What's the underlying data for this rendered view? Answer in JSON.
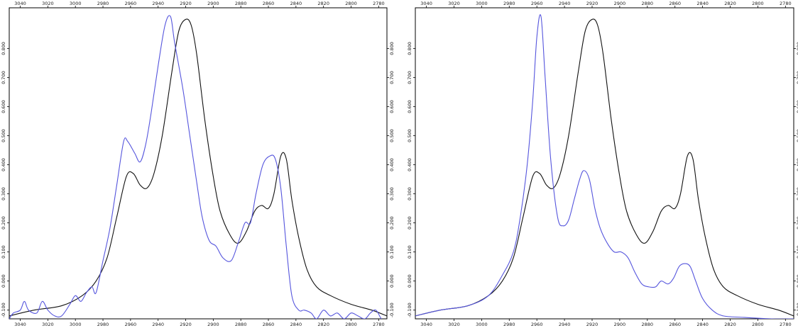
{
  "chart_data": [
    {
      "type": "line",
      "panel": "left",
      "title": "",
      "xlabel": "",
      "ylabel": "",
      "xlim": [
        3048,
        2774
      ],
      "ylim": [
        -0.13,
        0.94
      ],
      "x_ticks": [
        "3040",
        "3020",
        "3000",
        "2980",
        "2960",
        "2940",
        "2920",
        "2900",
        "2880",
        "2860",
        "2840",
        "2820",
        "2800",
        "2780"
      ],
      "y_ticks": [
        "-0.100",
        "0.000",
        "0.100",
        "0.200",
        "0.300",
        "0.400",
        "0.500",
        "0.600",
        "0.700",
        "0.800"
      ],
      "grid": false,
      "legend": "none",
      "series": [
        {
          "color": "#111111",
          "points": [
            [
              3048,
              -0.12
            ],
            [
              3030,
              -0.1
            ],
            [
              3010,
              -0.085
            ],
            [
              2995,
              -0.05
            ],
            [
              2985,
              0.0
            ],
            [
              2977,
              0.08
            ],
            [
              2970,
              0.22
            ],
            [
              2963,
              0.36
            ],
            [
              2958,
              0.37
            ],
            [
              2953,
              0.33
            ],
            [
              2948,
              0.32
            ],
            [
              2943,
              0.37
            ],
            [
              2937,
              0.5
            ],
            [
              2930,
              0.72
            ],
            [
              2925,
              0.86
            ],
            [
              2920,
              0.9
            ],
            [
              2916,
              0.88
            ],
            [
              2912,
              0.78
            ],
            [
              2906,
              0.55
            ],
            [
              2900,
              0.36
            ],
            [
              2895,
              0.24
            ],
            [
              2888,
              0.16
            ],
            [
              2882,
              0.13
            ],
            [
              2876,
              0.17
            ],
            [
              2870,
              0.24
            ],
            [
              2865,
              0.26
            ],
            [
              2860,
              0.25
            ],
            [
              2856,
              0.3
            ],
            [
              2851,
              0.43
            ],
            [
              2847,
              0.42
            ],
            [
              2843,
              0.28
            ],
            [
              2838,
              0.15
            ],
            [
              2832,
              0.04
            ],
            [
              2825,
              -0.02
            ],
            [
              2815,
              -0.05
            ],
            [
              2800,
              -0.08
            ],
            [
              2785,
              -0.1
            ],
            [
              2774,
              -0.12
            ]
          ]
        },
        {
          "color": "#5555dd",
          "points": [
            [
              3048,
              -0.13
            ],
            [
              3045,
              -0.11
            ],
            [
              3040,
              -0.1
            ],
            [
              3037,
              -0.07
            ],
            [
              3034,
              -0.1
            ],
            [
              3028,
              -0.11
            ],
            [
              3024,
              -0.07
            ],
            [
              3020,
              -0.1
            ],
            [
              3015,
              -0.12
            ],
            [
              3010,
              -0.12
            ],
            [
              3004,
              -0.08
            ],
            [
              3000,
              -0.05
            ],
            [
              2996,
              -0.07
            ],
            [
              2992,
              -0.04
            ],
            [
              2988,
              -0.02
            ],
            [
              2985,
              -0.04
            ],
            [
              2980,
              0.07
            ],
            [
              2975,
              0.18
            ],
            [
              2970,
              0.33
            ],
            [
              2965,
              0.48
            ],
            [
              2962,
              0.48
            ],
            [
              2957,
              0.44
            ],
            [
              2953,
              0.41
            ],
            [
              2949,
              0.47
            ],
            [
              2945,
              0.58
            ],
            [
              2940,
              0.74
            ],
            [
              2935,
              0.88
            ],
            [
              2931,
              0.91
            ],
            [
              2928,
              0.82
            ],
            [
              2922,
              0.66
            ],
            [
              2917,
              0.5
            ],
            [
              2912,
              0.34
            ],
            [
              2908,
              0.22
            ],
            [
              2903,
              0.14
            ],
            [
              2898,
              0.12
            ],
            [
              2893,
              0.08
            ],
            [
              2887,
              0.07
            ],
            [
              2882,
              0.13
            ],
            [
              2877,
              0.2
            ],
            [
              2873,
              0.2
            ],
            [
              2869,
              0.3
            ],
            [
              2864,
              0.4
            ],
            [
              2859,
              0.43
            ],
            [
              2855,
              0.42
            ],
            [
              2851,
              0.32
            ],
            [
              2847,
              0.12
            ],
            [
              2843,
              -0.05
            ],
            [
              2838,
              -0.1
            ],
            [
              2834,
              -0.1
            ],
            [
              2829,
              -0.11
            ],
            [
              2825,
              -0.13
            ],
            [
              2820,
              -0.1
            ],
            [
              2815,
              -0.12
            ],
            [
              2810,
              -0.11
            ],
            [
              2805,
              -0.13
            ],
            [
              2800,
              -0.11
            ],
            [
              2795,
              -0.12
            ],
            [
              2790,
              -0.13
            ],
            [
              2786,
              -0.11
            ],
            [
              2782,
              -0.1
            ],
            [
              2778,
              -0.13
            ],
            [
              2774,
              -0.14
            ]
          ]
        }
      ]
    },
    {
      "type": "line",
      "panel": "right",
      "title": "",
      "xlabel": "",
      "ylabel": "",
      "xlim": [
        3048,
        2774
      ],
      "ylim": [
        -0.13,
        0.94
      ],
      "x_ticks": [
        "3040",
        "3020",
        "3000",
        "2980",
        "2960",
        "2940",
        "2920",
        "2900",
        "2880",
        "2860",
        "2840",
        "2820",
        "2800",
        "2780"
      ],
      "y_ticks": [
        "-0.100",
        "0.000",
        "0.100",
        "0.200",
        "0.300",
        "0.400",
        "0.500",
        "0.600",
        "0.700",
        "0.800"
      ],
      "grid": false,
      "legend": "none",
      "series": [
        {
          "color": "#111111",
          "points": [
            [
              3048,
              -0.12
            ],
            [
              3030,
              -0.1
            ],
            [
              3010,
              -0.085
            ],
            [
              2995,
              -0.05
            ],
            [
              2985,
              0.0
            ],
            [
              2977,
              0.08
            ],
            [
              2970,
              0.22
            ],
            [
              2963,
              0.36
            ],
            [
              2958,
              0.37
            ],
            [
              2953,
              0.33
            ],
            [
              2948,
              0.32
            ],
            [
              2943,
              0.37
            ],
            [
              2937,
              0.5
            ],
            [
              2930,
              0.72
            ],
            [
              2925,
              0.86
            ],
            [
              2920,
              0.9
            ],
            [
              2916,
              0.88
            ],
            [
              2912,
              0.78
            ],
            [
              2906,
              0.55
            ],
            [
              2900,
              0.36
            ],
            [
              2895,
              0.24
            ],
            [
              2888,
              0.16
            ],
            [
              2882,
              0.13
            ],
            [
              2876,
              0.17
            ],
            [
              2870,
              0.24
            ],
            [
              2865,
              0.26
            ],
            [
              2860,
              0.25
            ],
            [
              2856,
              0.3
            ],
            [
              2851,
              0.43
            ],
            [
              2847,
              0.42
            ],
            [
              2843,
              0.28
            ],
            [
              2838,
              0.15
            ],
            [
              2832,
              0.04
            ],
            [
              2825,
              -0.02
            ],
            [
              2815,
              -0.05
            ],
            [
              2800,
              -0.08
            ],
            [
              2785,
              -0.1
            ],
            [
              2774,
              -0.12
            ]
          ]
        },
        {
          "color": "#5555dd",
          "points": [
            [
              3048,
              -0.12
            ],
            [
              3030,
              -0.1
            ],
            [
              3010,
              -0.085
            ],
            [
              2995,
              -0.05
            ],
            [
              2985,
              0.02
            ],
            [
              2977,
              0.1
            ],
            [
              2972,
              0.22
            ],
            [
              2967,
              0.4
            ],
            [
              2963,
              0.62
            ],
            [
              2960,
              0.84
            ],
            [
              2957,
              0.91
            ],
            [
              2954,
              0.7
            ],
            [
              2950,
              0.42
            ],
            [
              2945,
              0.22
            ],
            [
              2941,
              0.19
            ],
            [
              2937,
              0.21
            ],
            [
              2933,
              0.28
            ],
            [
              2929,
              0.35
            ],
            [
              2926,
              0.38
            ],
            [
              2922,
              0.35
            ],
            [
              2918,
              0.25
            ],
            [
              2914,
              0.18
            ],
            [
              2909,
              0.13
            ],
            [
              2904,
              0.1
            ],
            [
              2899,
              0.1
            ],
            [
              2894,
              0.08
            ],
            [
              2889,
              0.03
            ],
            [
              2884,
              -0.01
            ],
            [
              2879,
              -0.02
            ],
            [
              2874,
              -0.02
            ],
            [
              2870,
              0.0
            ],
            [
              2865,
              -0.01
            ],
            [
              2861,
              0.01
            ],
            [
              2857,
              0.05
            ],
            [
              2853,
              0.06
            ],
            [
              2849,
              0.05
            ],
            [
              2845,
              0.0
            ],
            [
              2840,
              -0.06
            ],
            [
              2833,
              -0.1
            ],
            [
              2825,
              -0.12
            ],
            [
              2810,
              -0.125
            ],
            [
              2790,
              -0.13
            ],
            [
              2774,
              -0.13
            ]
          ]
        }
      ]
    }
  ]
}
